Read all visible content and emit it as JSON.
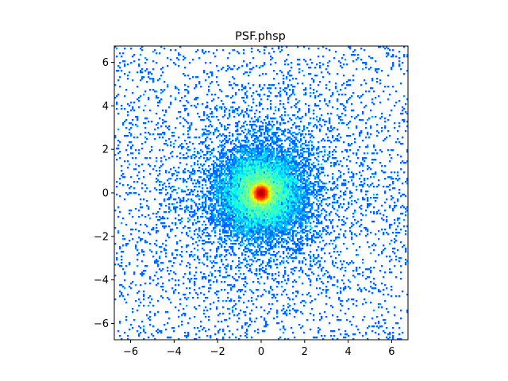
{
  "chart_data": {
    "type": "heatmap",
    "title": "PSF.phsp",
    "xlabel": "",
    "ylabel": "",
    "xlim": [
      -6.75,
      6.75
    ],
    "ylim": [
      -6.75,
      6.75
    ],
    "x_ticks": [
      -6,
      -4,
      -2,
      0,
      2,
      4,
      6
    ],
    "y_ticks": [
      -6,
      -4,
      -2,
      0,
      2,
      4,
      6
    ],
    "x_tick_labels": [
      "−6",
      "−4",
      "−2",
      "0",
      "2",
      "4",
      "6"
    ],
    "y_tick_labels": [
      "−6",
      "−4",
      "−2",
      "0",
      "2",
      "4",
      "6"
    ],
    "grid": false,
    "colormap": "jet",
    "colormap_stops": [
      "#00007f",
      "#0000ff",
      "#007fff",
      "#00ffff",
      "#7fff7f",
      "#ffff00",
      "#ff7f00",
      "#ff0000",
      "#7f0000"
    ],
    "background_color": "#ffffff",
    "peak": {
      "x": 0,
      "y": 0,
      "level": "max"
    },
    "distribution": "radially symmetric point spread function, dense core near the origin with sparse halo out to the plot edges"
  }
}
